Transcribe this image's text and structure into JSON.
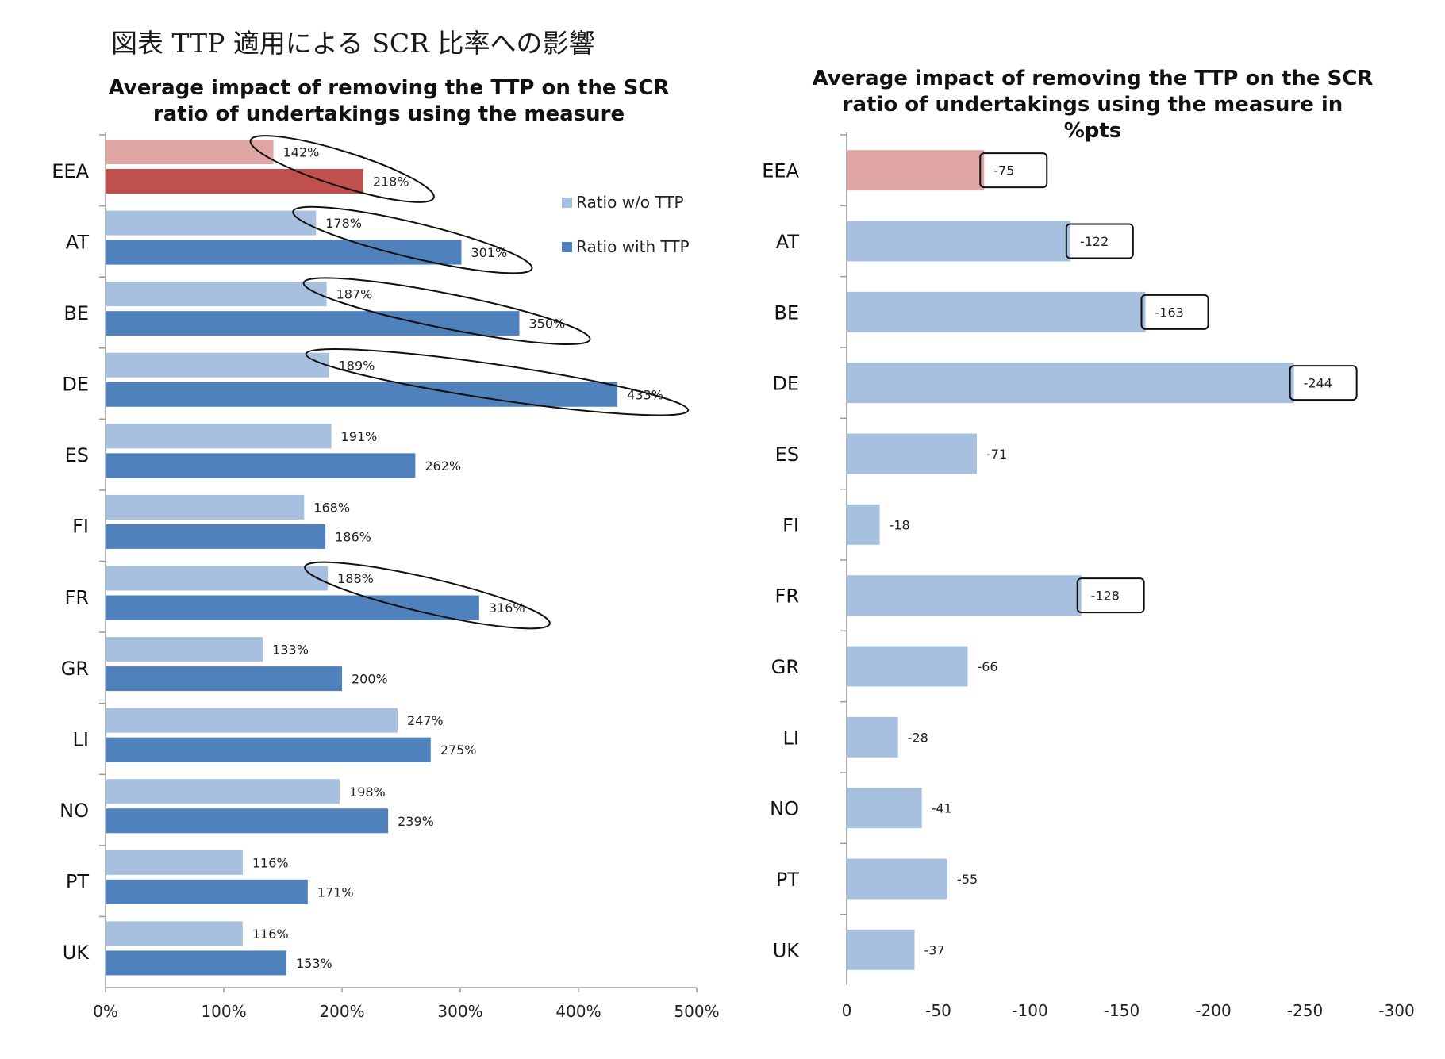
{
  "figure_title": "図表 TTP 適用による SCR 比率への影響",
  "chart_data": [
    {
      "type": "bar",
      "orientation": "horizontal",
      "title_lines": [
        "Average impact of removing the TTP on the SCR",
        "ratio of undertakings using the measure"
      ],
      "categories": [
        "EEA",
        "AT",
        "BE",
        "DE",
        "ES",
        "FI",
        "FR",
        "GR",
        "LI",
        "NO",
        "PT",
        "UK"
      ],
      "series": [
        {
          "name": "Ratio w/o TTP",
          "color": "#a8c0df",
          "values": [
            142,
            178,
            187,
            189,
            191,
            168,
            188,
            133,
            247,
            198,
            116,
            116
          ]
        },
        {
          "name": "Ratio with TTP",
          "color": "#4f81bd",
          "values": [
            218,
            301,
            350,
            433,
            262,
            186,
            316,
            200,
            275,
            239,
            171,
            153
          ]
        }
      ],
      "highlight": {
        "category": "EEA",
        "colors": [
          "#e0a5a5",
          "#c0504d"
        ]
      },
      "value_suffix": "%",
      "xlim": [
        0,
        500
      ],
      "xticks": [
        "0%",
        "100%",
        "200%",
        "300%",
        "400%",
        "500%"
      ],
      "legend_position": "right",
      "circled_categories": [
        "EEA",
        "AT",
        "BE",
        "DE",
        "FR"
      ]
    },
    {
      "type": "bar",
      "orientation": "horizontal",
      "title_lines": [
        "Average impact of removing the TTP on the SCR",
        "ratio of undertakings using the measure in",
        "%pts"
      ],
      "categories": [
        "EEA",
        "AT",
        "BE",
        "DE",
        "ES",
        "FI",
        "FR",
        "GR",
        "LI",
        "NO",
        "PT",
        "UK"
      ],
      "values": [
        -75,
        -122,
        -163,
        -244,
        -71,
        -18,
        -128,
        -66,
        -28,
        -41,
        -55,
        -37
      ],
      "color": "#a8c0df",
      "highlight": {
        "category": "EEA",
        "color": "#e0a5a5"
      },
      "xlim": [
        0,
        -300
      ],
      "xticks": [
        "0",
        "-50",
        "-100",
        "-150",
        "-200",
        "-250",
        "-300"
      ],
      "boxed_categories": [
        "EEA",
        "AT",
        "BE",
        "DE",
        "FR"
      ]
    }
  ]
}
